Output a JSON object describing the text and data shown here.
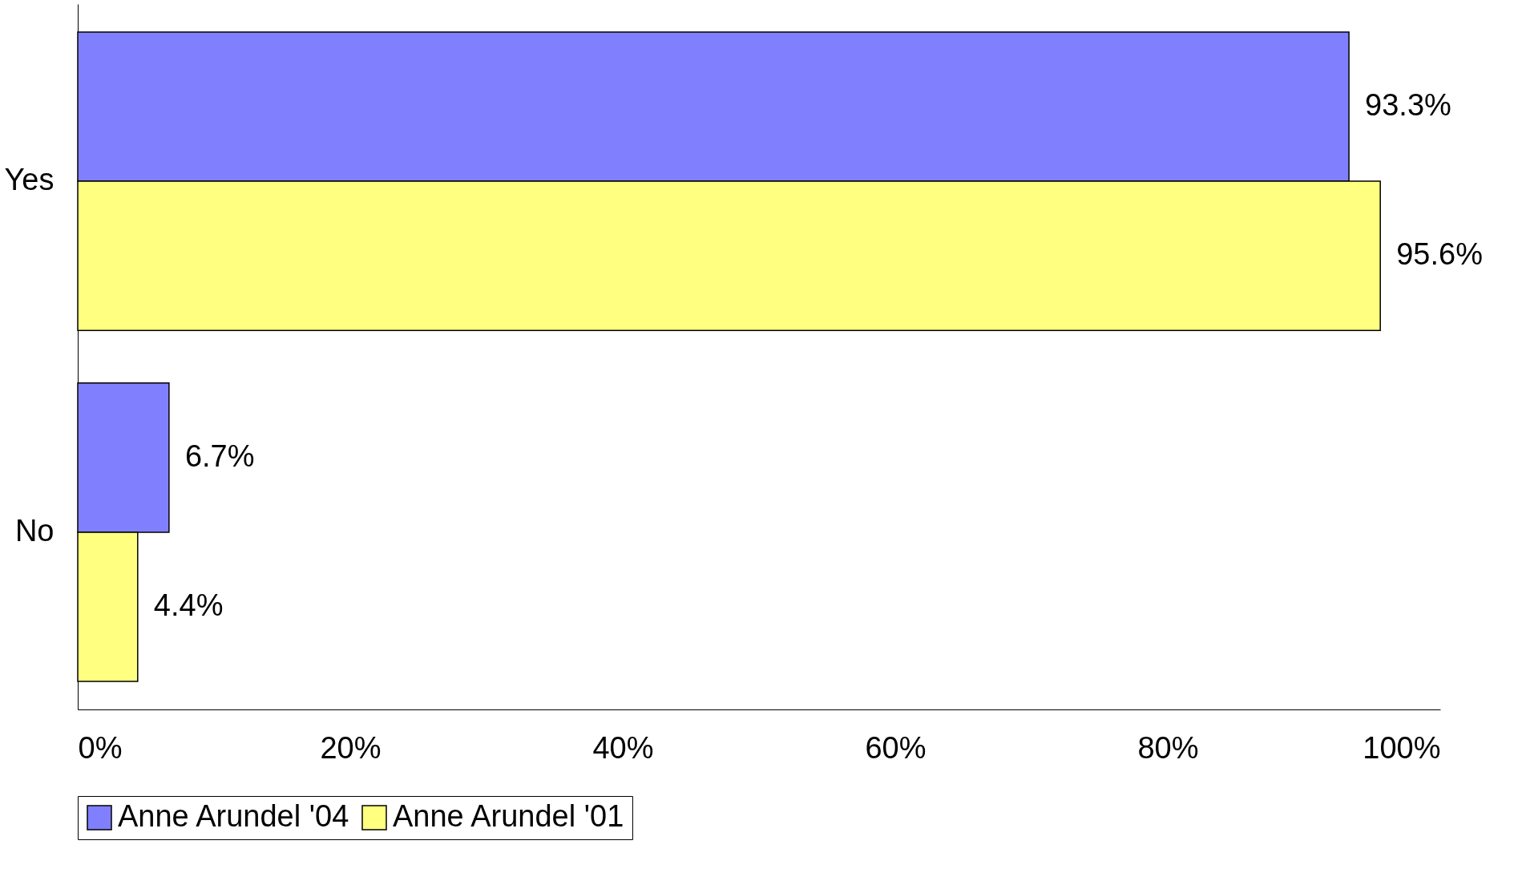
{
  "chart_data": {
    "type": "bar",
    "orientation": "horizontal",
    "categories": [
      "Yes",
      "No"
    ],
    "series": [
      {
        "name": "Anne Arundel '04",
        "color": "#8080ff",
        "values": [
          93.3,
          6.7
        ],
        "value_labels": [
          "93.3%",
          "6.7%"
        ]
      },
      {
        "name": "Anne Arundel '01",
        "color": "#ffff80",
        "values": [
          95.6,
          4.4
        ],
        "value_labels": [
          "95.6%",
          "4.4%"
        ]
      }
    ],
    "xlim": [
      0,
      100
    ],
    "xticks": [
      {
        "value": 0,
        "label": "0%"
      },
      {
        "value": 20,
        "label": "20%"
      },
      {
        "value": 40,
        "label": "40%"
      },
      {
        "value": 60,
        "label": "60%"
      },
      {
        "value": 80,
        "label": "80%"
      },
      {
        "value": 100,
        "label": "100%"
      }
    ],
    "grid": false,
    "legend": "bottom"
  }
}
